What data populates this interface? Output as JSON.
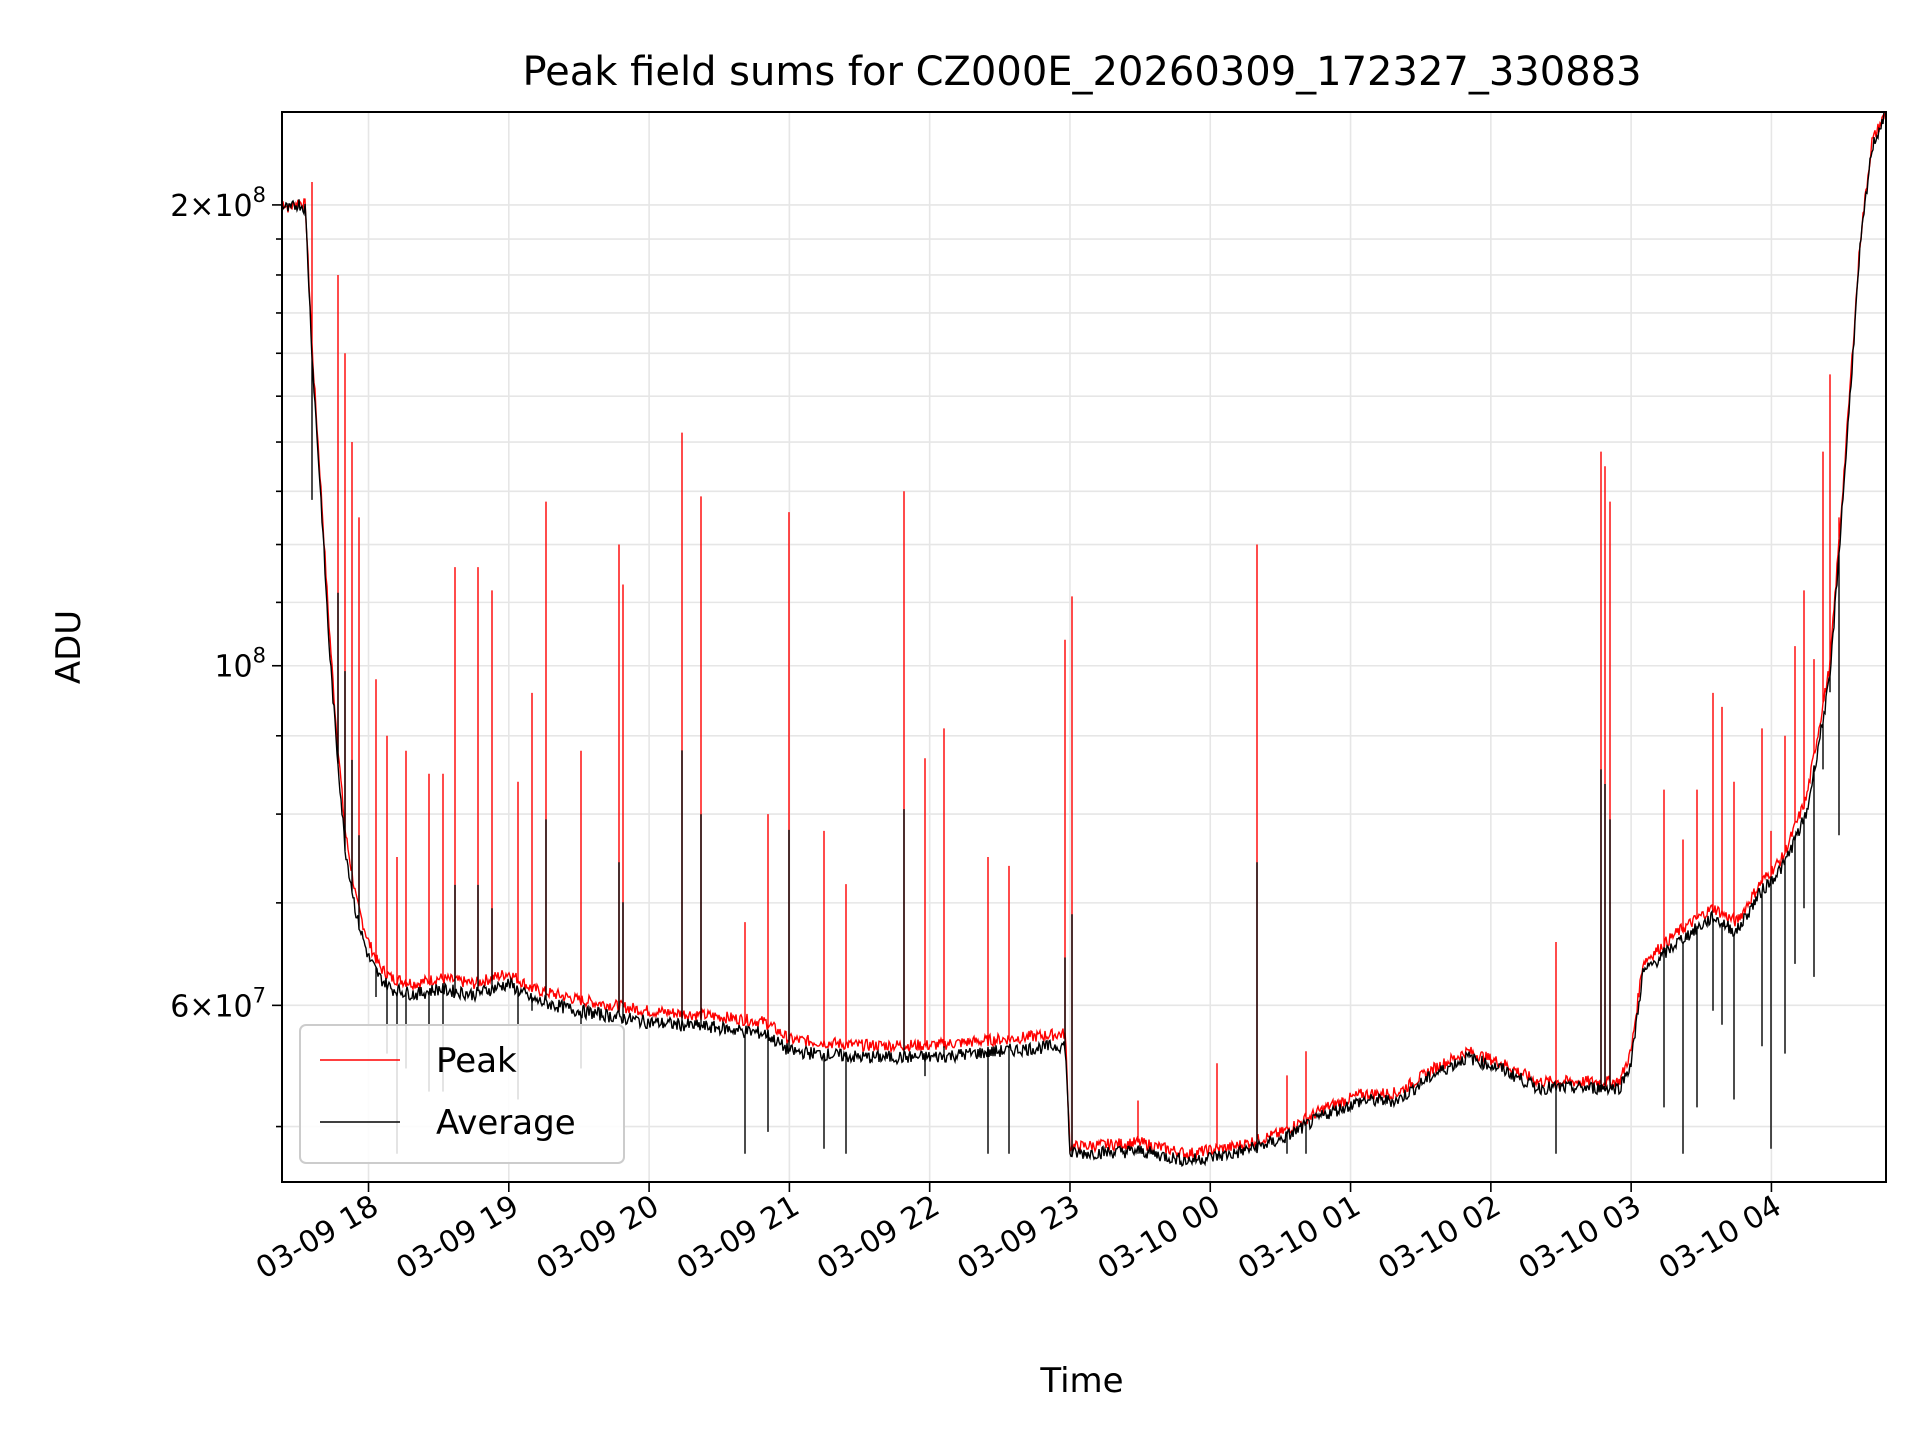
{
  "chart_data": {
    "type": "line",
    "title": "Peak field sums for CZ000E_20260309_172327_330883",
    "xlabel": "Time",
    "ylabel": "ADU",
    "yscale": "log",
    "grid": true,
    "legend_position": "lower-left",
    "xlim": [
      "2026-03-09 17:23",
      "2026-03-10 04:49"
    ],
    "ylim": [
      46000000,
      230000000
    ],
    "x_ticks": [
      "03-09 18",
      "03-09 19",
      "03-09 20",
      "03-09 21",
      "03-09 22",
      "03-09 23",
      "03-10 00",
      "03-10 01",
      "03-10 02",
      "03-10 03",
      "03-10 04"
    ],
    "y_ticks": [
      {
        "value": 60000000,
        "label_base": "6×10",
        "label_exp": "7"
      },
      {
        "value": 100000000,
        "label_base": "10",
        "label_exp": "8"
      },
      {
        "value": 200000000,
        "label_base": "2×10",
        "label_exp": "8"
      }
    ],
    "series": [
      {
        "name": "Peak",
        "color": "#ff0000",
        "x": [
          "2026-03-09 17:23",
          "2026-03-09 17:26",
          "2026-03-09 17:30",
          "2026-03-09 17:33",
          "2026-03-09 17:36",
          "2026-03-09 17:40",
          "2026-03-09 17:43",
          "2026-03-09 17:46",
          "2026-03-09 17:50",
          "2026-03-09 17:55",
          "2026-03-09 18:00",
          "2026-03-09 18:05",
          "2026-03-09 18:10",
          "2026-03-09 18:20",
          "2026-03-09 18:30",
          "2026-03-09 18:45",
          "2026-03-09 19:00",
          "2026-03-09 19:10",
          "2026-03-09 19:20",
          "2026-03-09 19:30",
          "2026-03-09 19:45",
          "2026-03-09 20:00",
          "2026-03-09 20:30",
          "2026-03-09 20:50",
          "2026-03-09 21:00",
          "2026-03-09 21:30",
          "2026-03-09 22:00",
          "2026-03-09 22:30",
          "2026-03-09 22:58",
          "2026-03-09 23:00",
          "2026-03-09 23:30",
          "2026-03-09 23:50",
          "2026-03-10 00:10",
          "2026-03-10 00:30",
          "2026-03-10 00:50",
          "2026-03-10 01:05",
          "2026-03-10 01:20",
          "2026-03-10 01:35",
          "2026-03-10 01:50",
          "2026-03-10 02:05",
          "2026-03-10 02:20",
          "2026-03-10 02:40",
          "2026-03-10 02:55",
          "2026-03-10 03:00",
          "2026-03-10 03:05",
          "2026-03-10 03:20",
          "2026-03-10 03:35",
          "2026-03-10 03:45",
          "2026-03-10 03:55",
          "2026-03-10 04:05",
          "2026-03-10 04:15",
          "2026-03-10 04:25",
          "2026-03-10 04:32",
          "2026-03-10 04:38",
          "2026-03-10 04:43",
          "2026-03-10 04:49"
        ],
        "y": [
          201000000,
          199000000,
          201000000,
          200000000,
          160000000,
          128000000,
          107000000,
          92000000,
          78000000,
          70000000,
          66000000,
          63500000,
          62500000,
          62000000,
          62500000,
          62000000,
          63000000,
          61500000,
          61000000,
          60500000,
          60000000,
          59500000,
          59000000,
          58500000,
          57000000,
          56500000,
          56500000,
          57000000,
          57500000,
          48500000,
          48800000,
          48000000,
          48500000,
          49500000,
          51500000,
          52500000,
          52600000,
          54500000,
          56000000,
          55000000,
          53500000,
          53500000,
          53500000,
          56000000,
          64000000,
          67000000,
          69500000,
          68000000,
          72000000,
          75000000,
          82000000,
          100000000,
          140000000,
          190000000,
          220000000,
          230000000
        ]
      },
      {
        "name": "Average",
        "color": "#000000",
        "x": [
          "2026-03-09 17:23",
          "2026-03-09 17:26",
          "2026-03-09 17:30",
          "2026-03-09 17:33",
          "2026-03-09 17:36",
          "2026-03-09 17:40",
          "2026-03-09 17:43",
          "2026-03-09 17:46",
          "2026-03-09 17:50",
          "2026-03-09 17:55",
          "2026-03-09 18:00",
          "2026-03-09 18:05",
          "2026-03-09 18:10",
          "2026-03-09 18:20",
          "2026-03-09 18:30",
          "2026-03-09 18:45",
          "2026-03-09 19:00",
          "2026-03-09 19:10",
          "2026-03-09 19:20",
          "2026-03-09 19:30",
          "2026-03-09 19:45",
          "2026-03-09 20:00",
          "2026-03-09 20:30",
          "2026-03-09 20:50",
          "2026-03-09 21:00",
          "2026-03-09 21:30",
          "2026-03-09 22:00",
          "2026-03-09 22:30",
          "2026-03-09 22:58",
          "2026-03-09 23:00",
          "2026-03-09 23:30",
          "2026-03-09 23:50",
          "2026-03-10 00:10",
          "2026-03-10 00:30",
          "2026-03-10 00:50",
          "2026-03-10 01:05",
          "2026-03-10 01:20",
          "2026-03-10 01:35",
          "2026-03-10 01:50",
          "2026-03-10 02:05",
          "2026-03-10 02:20",
          "2026-03-10 02:40",
          "2026-03-10 02:55",
          "2026-03-10 03:00",
          "2026-03-10 03:05",
          "2026-03-10 03:20",
          "2026-03-10 03:35",
          "2026-03-10 03:45",
          "2026-03-10 03:55",
          "2026-03-10 04:05",
          "2026-03-10 04:15",
          "2026-03-10 04:25",
          "2026-03-10 04:32",
          "2026-03-10 04:38",
          "2026-03-10 04:43",
          "2026-03-10 04:49"
        ],
        "y": [
          200000000,
          198500000,
          200500000,
          199000000,
          158000000,
          126000000,
          104000000,
          90000000,
          76000000,
          68500000,
          64500000,
          62500000,
          61500000,
          61000000,
          61500000,
          61000000,
          62000000,
          60500000,
          60000000,
          59500000,
          59000000,
          58500000,
          58000000,
          57500000,
          56000000,
          55500000,
          55500000,
          56000000,
          56500000,
          48000000,
          48200000,
          47500000,
          48000000,
          49000000,
          51000000,
          52000000,
          52000000,
          54000000,
          55500000,
          54500000,
          53000000,
          53000000,
          53000000,
          55000000,
          63000000,
          66000000,
          68500000,
          67000000,
          71000000,
          74000000,
          80000000,
          98000000,
          138000000,
          188000000,
          218000000,
          230000000
        ]
      }
    ],
    "peak_spikes": [
      {
        "x": "2026-03-09 17:36",
        "y": 207000000
      },
      {
        "x": "2026-03-09 17:47",
        "y": 180000000
      },
      {
        "x": "2026-03-09 17:50",
        "y": 160000000
      },
      {
        "x": "2026-03-09 17:53",
        "y": 140000000
      },
      {
        "x": "2026-03-09 17:56",
        "y": 125000000
      },
      {
        "x": "2026-03-09 18:03",
        "y": 98000000
      },
      {
        "x": "2026-03-09 18:08",
        "y": 90000000
      },
      {
        "x": "2026-03-09 18:12",
        "y": 75000000
      },
      {
        "x": "2026-03-09 18:16",
        "y": 88000000
      },
      {
        "x": "2026-03-09 18:26",
        "y": 85000000
      },
      {
        "x": "2026-03-09 18:32",
        "y": 85000000
      },
      {
        "x": "2026-03-09 18:37",
        "y": 116000000
      },
      {
        "x": "2026-03-09 18:47",
        "y": 116000000
      },
      {
        "x": "2026-03-09 18:53",
        "y": 112000000
      },
      {
        "x": "2026-03-09 19:04",
        "y": 84000000
      },
      {
        "x": "2026-03-09 19:10",
        "y": 96000000
      },
      {
        "x": "2026-03-09 19:16",
        "y": 128000000
      },
      {
        "x": "2026-03-09 19:31",
        "y": 88000000
      },
      {
        "x": "2026-03-09 19:47",
        "y": 120000000
      },
      {
        "x": "2026-03-09 19:49",
        "y": 113000000
      },
      {
        "x": "2026-03-09 20:14",
        "y": 142000000
      },
      {
        "x": "2026-03-09 20:22",
        "y": 129000000
      },
      {
        "x": "2026-03-09 20:41",
        "y": 68000000
      },
      {
        "x": "2026-03-09 20:51",
        "y": 80000000
      },
      {
        "x": "2026-03-09 21:00",
        "y": 126000000
      },
      {
        "x": "2026-03-09 21:15",
        "y": 78000000
      },
      {
        "x": "2026-03-09 21:24",
        "y": 72000000
      },
      {
        "x": "2026-03-09 21:49",
        "y": 130000000
      },
      {
        "x": "2026-03-09 21:58",
        "y": 87000000
      },
      {
        "x": "2026-03-09 22:06",
        "y": 91000000
      },
      {
        "x": "2026-03-09 22:25",
        "y": 75000000
      },
      {
        "x": "2026-03-09 22:34",
        "y": 74000000
      },
      {
        "x": "2026-03-09 22:58",
        "y": 104000000
      },
      {
        "x": "2026-03-09 23:01",
        "y": 111000000
      },
      {
        "x": "2026-03-09 23:29",
        "y": 52000000
      },
      {
        "x": "2026-03-10 00:03",
        "y": 55000000
      },
      {
        "x": "2026-03-10 00:20",
        "y": 120000000
      },
      {
        "x": "2026-03-10 00:33",
        "y": 54000000
      },
      {
        "x": "2026-03-10 00:41",
        "y": 56000000
      },
      {
        "x": "2026-03-10 02:28",
        "y": 66000000
      },
      {
        "x": "2026-03-10 02:47",
        "y": 138000000
      },
      {
        "x": "2026-03-10 02:49",
        "y": 135000000
      },
      {
        "x": "2026-03-10 02:51",
        "y": 128000000
      },
      {
        "x": "2026-03-10 03:14",
        "y": 83000000
      },
      {
        "x": "2026-03-10 03:22",
        "y": 77000000
      },
      {
        "x": "2026-03-10 03:28",
        "y": 83000000
      },
      {
        "x": "2026-03-10 03:35",
        "y": 96000000
      },
      {
        "x": "2026-03-10 03:39",
        "y": 94000000
      },
      {
        "x": "2026-03-10 03:44",
        "y": 84000000
      },
      {
        "x": "2026-03-10 03:56",
        "y": 91000000
      },
      {
        "x": "2026-03-10 04:00",
        "y": 78000000
      },
      {
        "x": "2026-03-10 04:06",
        "y": 90000000
      },
      {
        "x": "2026-03-10 04:10",
        "y": 103000000
      },
      {
        "x": "2026-03-10 04:14",
        "y": 112000000
      },
      {
        "x": "2026-03-10 04:18",
        "y": 101000000
      },
      {
        "x": "2026-03-10 04:22",
        "y": 138000000
      },
      {
        "x": "2026-03-10 04:25",
        "y": 155000000
      },
      {
        "x": "2026-03-10 04:29",
        "y": 125000000
      }
    ]
  }
}
